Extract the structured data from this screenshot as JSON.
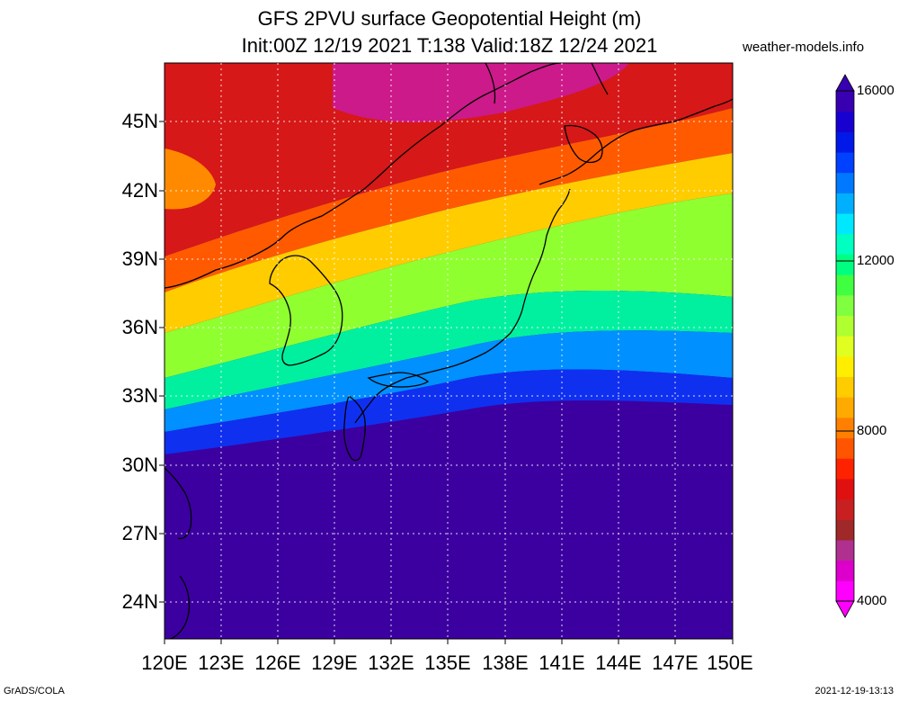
{
  "title": {
    "line1": "GFS 2PVU surface Geopotential Height (m)",
    "line2": "Init:00Z 12/19 2021 T:138 Valid:18Z 12/24 2021"
  },
  "site": "weather-models.info",
  "footer": {
    "left": "GrADS/COLA",
    "right": "2021-12-19-13:13"
  },
  "lat_labels": [
    "45N",
    "42N",
    "39N",
    "36N",
    "33N",
    "30N",
    "27N",
    "24N"
  ],
  "lon_labels": [
    "120E",
    "123E",
    "126E",
    "129E",
    "132E",
    "135E",
    "138E",
    "141E",
    "144E",
    "147E",
    "150E"
  ],
  "colorbar": {
    "labels": [
      "16000",
      "12000",
      "8000",
      "4000"
    ],
    "colors": [
      "#ff00ff",
      "#dd00cc",
      "#b03090",
      "#a02828",
      "#c82020",
      "#e01010",
      "#ff2200",
      "#ff5500",
      "#ff8000",
      "#ffaa00",
      "#ffcc00",
      "#ffee00",
      "#e0ff20",
      "#b0ff30",
      "#80ff40",
      "#40ff40",
      "#00ff80",
      "#00ffc0",
      "#00e8ff",
      "#00b0ff",
      "#0078ff",
      "#0040ff",
      "#0018e8",
      "#1800d0",
      "#3800b0"
    ]
  }
}
